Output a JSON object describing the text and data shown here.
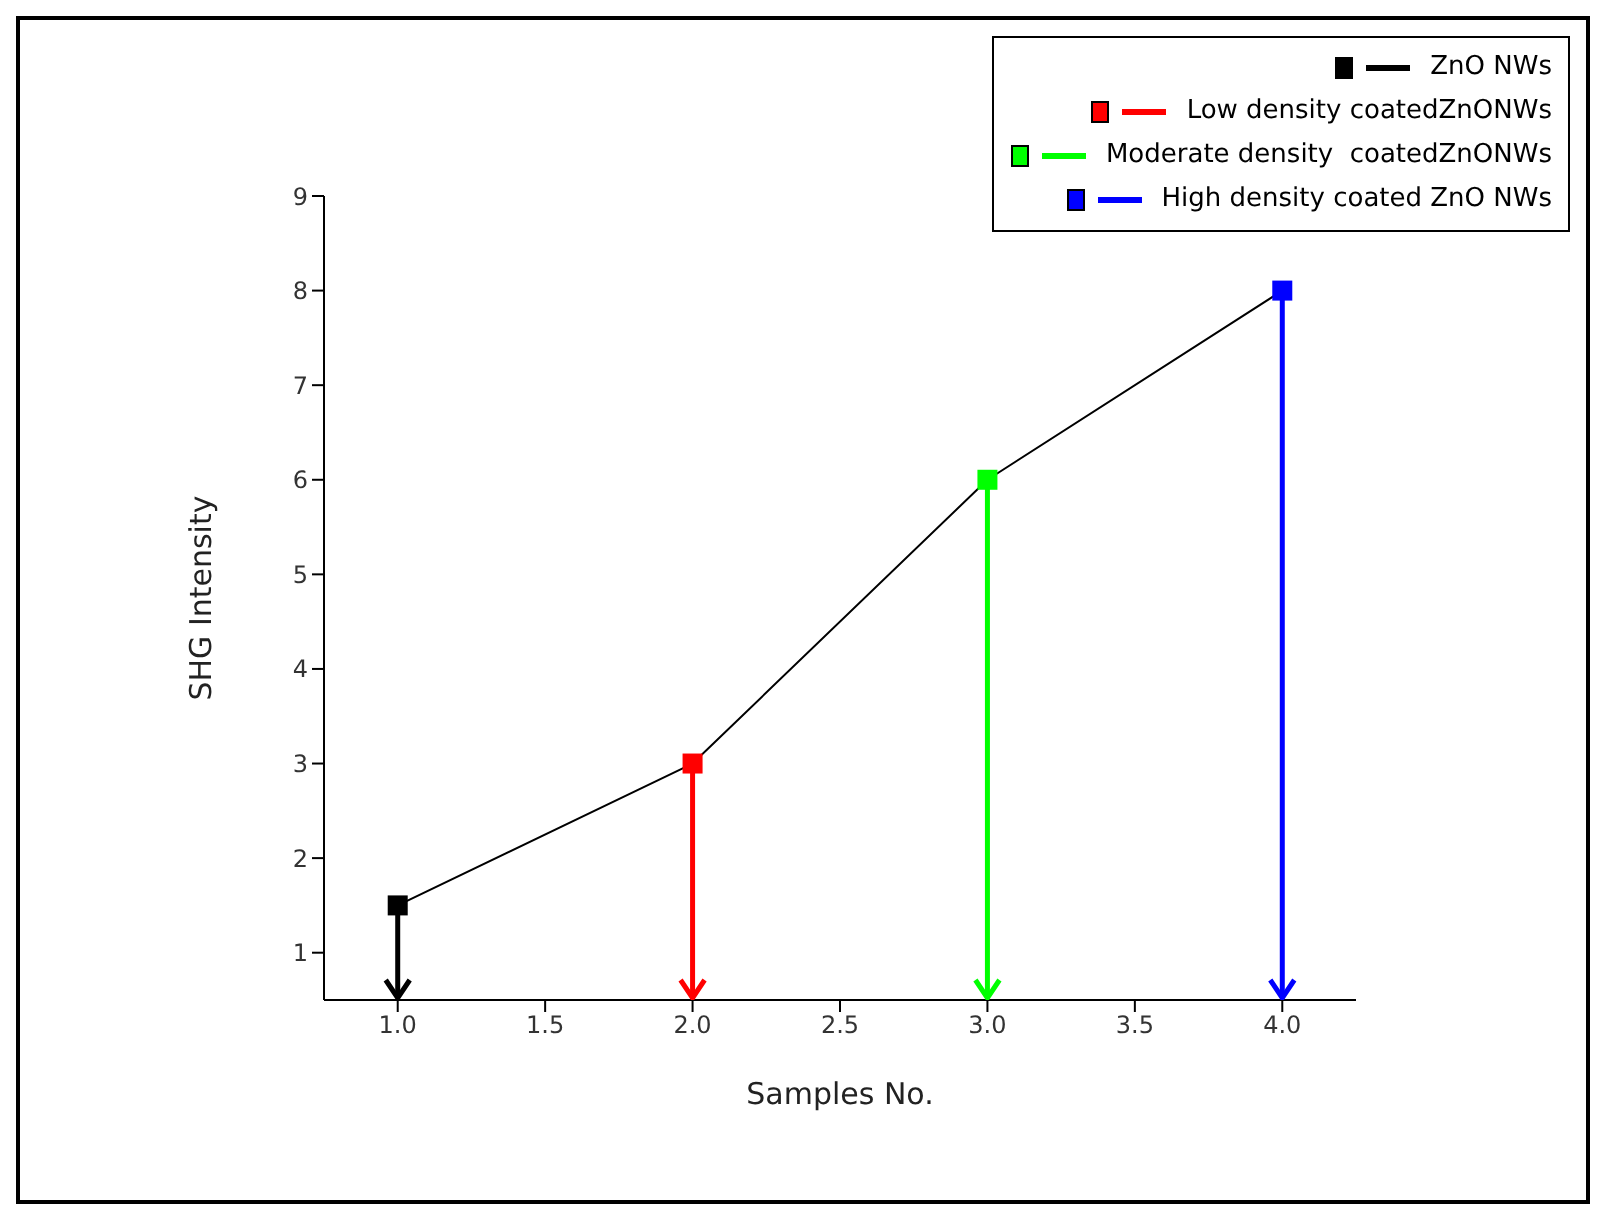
{
  "chart_data": {
    "type": "lollipop",
    "xlabel": "Samples No.",
    "ylabel": "SHG Intensity",
    "xlim": [
      0.75,
      4.25
    ],
    "xticks": [
      {
        "value": 1,
        "label": "1.0"
      },
      {
        "value": 1.5,
        "label": "1.5"
      },
      {
        "value": 2,
        "label": "2.0"
      },
      {
        "value": 2.5,
        "label": "2.5"
      },
      {
        "value": 3,
        "label": "3.0"
      },
      {
        "value": 3.5,
        "label": "3.5"
      },
      {
        "value": 4,
        "label": "4.0"
      }
    ],
    "ylim": [
      0.5,
      9
    ],
    "yticks": [
      1,
      2,
      3,
      4,
      5,
      6,
      7,
      8,
      9
    ],
    "grid": false,
    "legend": "top right",
    "marker": "square",
    "series": [
      {
        "type": "line",
        "color": "#000000",
        "marker": "none",
        "x": [
          1,
          2,
          3,
          4
        ],
        "values": [
          1.5,
          3,
          6,
          8
        ]
      },
      {
        "name": "ZnO NWs",
        "color": "#000000",
        "x": [
          1
        ],
        "values": [
          1.5
        ]
      },
      {
        "name": "Low density coatedZnONWs",
        "color": "#ff0000",
        "x": [
          2
        ],
        "values": [
          3
        ]
      },
      {
        "name": "Moderate density  coatedZnONWs",
        "color": "#00ff00",
        "x": [
          3
        ],
        "values": [
          6
        ]
      },
      {
        "name": "High density coated ZnO NWs",
        "color": "#0000ff",
        "x": [
          4
        ],
        "values": [
          8
        ]
      }
    ]
  }
}
